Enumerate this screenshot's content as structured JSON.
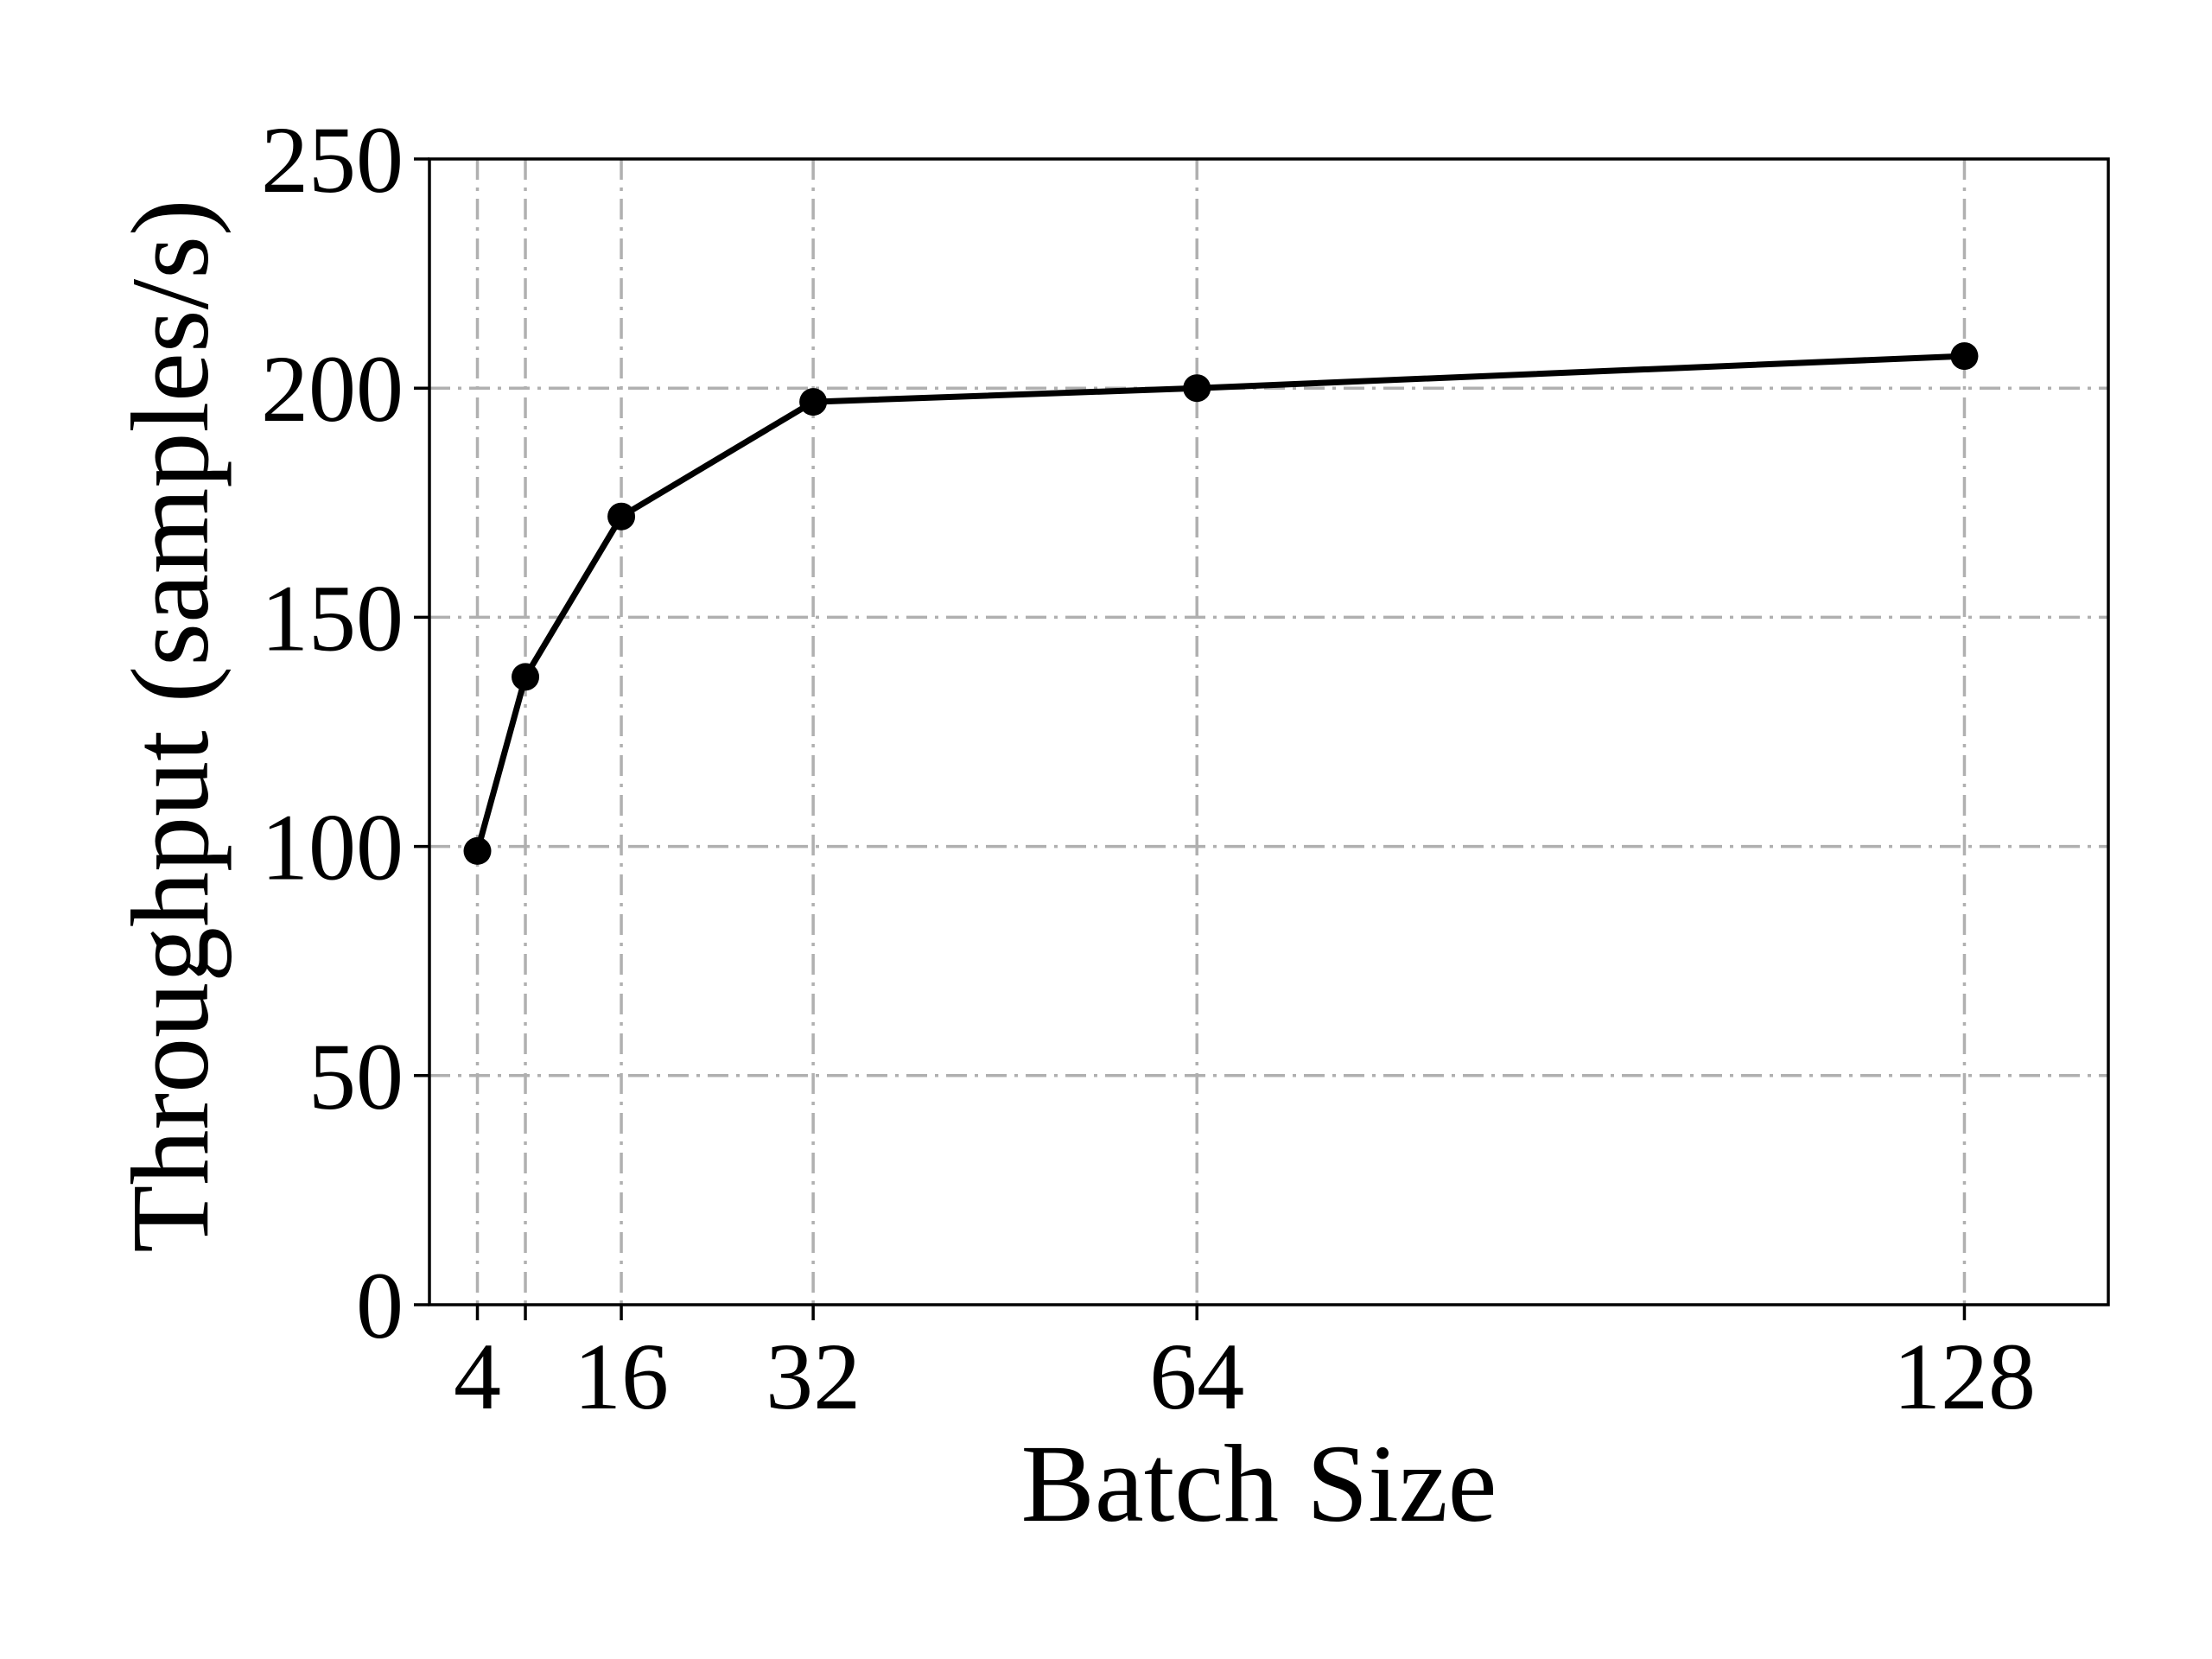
{
  "chart_data": {
    "type": "line",
    "title": "",
    "xlabel": "Batch Size",
    "ylabel": "Throughput (samples/s)",
    "x": [
      4,
      8,
      16,
      32,
      64,
      128
    ],
    "x_tick_values": [
      4,
      8,
      16,
      32,
      64,
      128
    ],
    "x_tick_labels": [
      "4",
      "",
      "16",
      "32",
      "64",
      "128"
    ],
    "xlim": [
      0,
      140
    ],
    "ylim": [
      0,
      250
    ],
    "y_ticks": [
      0,
      50,
      100,
      150,
      200,
      250
    ],
    "y_tick_labels": [
      "0",
      "50",
      "100",
      "150",
      "200",
      "250"
    ],
    "grid": true,
    "series": [
      {
        "values": [
          99,
          137,
          172,
          197,
          200,
          207
        ],
        "color": "#000000",
        "marker": "circle"
      }
    ]
  }
}
